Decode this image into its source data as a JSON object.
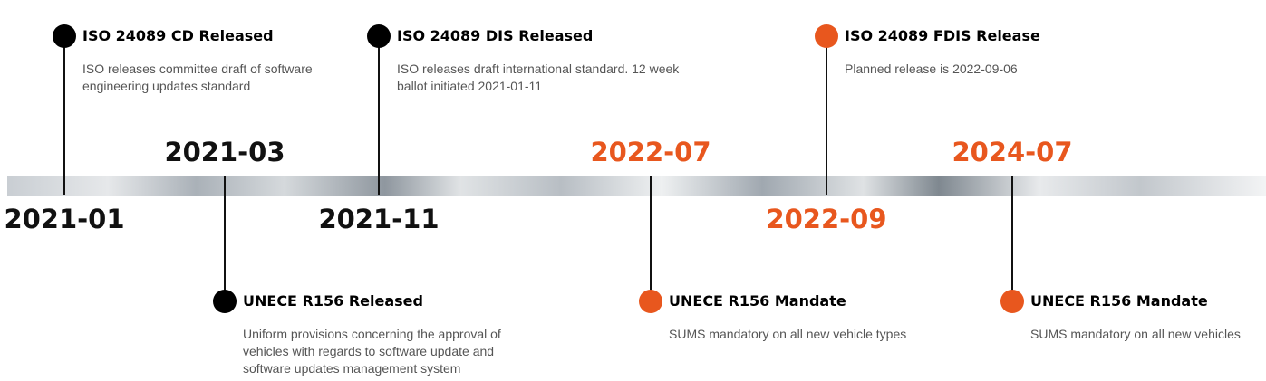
{
  "events": [
    {
      "date": "2021-01",
      "title": "ISO 24089 CD Released",
      "description": "ISO releases committee draft of software engineering updates standard",
      "side": "above",
      "color": "#000000"
    },
    {
      "date": "2021-03",
      "title": "UNECE R156 Released",
      "description": "Uniform provisions concerning the approval of vehicles with regards to software update and software updates management system",
      "side": "below",
      "color": "#000000"
    },
    {
      "date": "2021-11",
      "title": "ISO 24089 DIS Released",
      "description": "ISO releases draft international standard. 12 week ballot initiated 2021-01-11",
      "side": "above",
      "color": "#000000"
    },
    {
      "date": "2022-07",
      "title": "UNECE R156 Mandate",
      "description": "SUMS mandatory on all new vehicle types",
      "side": "below",
      "color": "#e8571e"
    },
    {
      "date": "2022-09",
      "title": "ISO 24089 FDIS Release",
      "description": "Planned release is 2022-09-06",
      "side": "above",
      "color": "#e8571e"
    },
    {
      "date": "2024-07",
      "title": "UNECE R156 Mandate",
      "description": "SUMS mandatory on all new vehicles",
      "side": "below",
      "color": "#e8571e"
    }
  ]
}
